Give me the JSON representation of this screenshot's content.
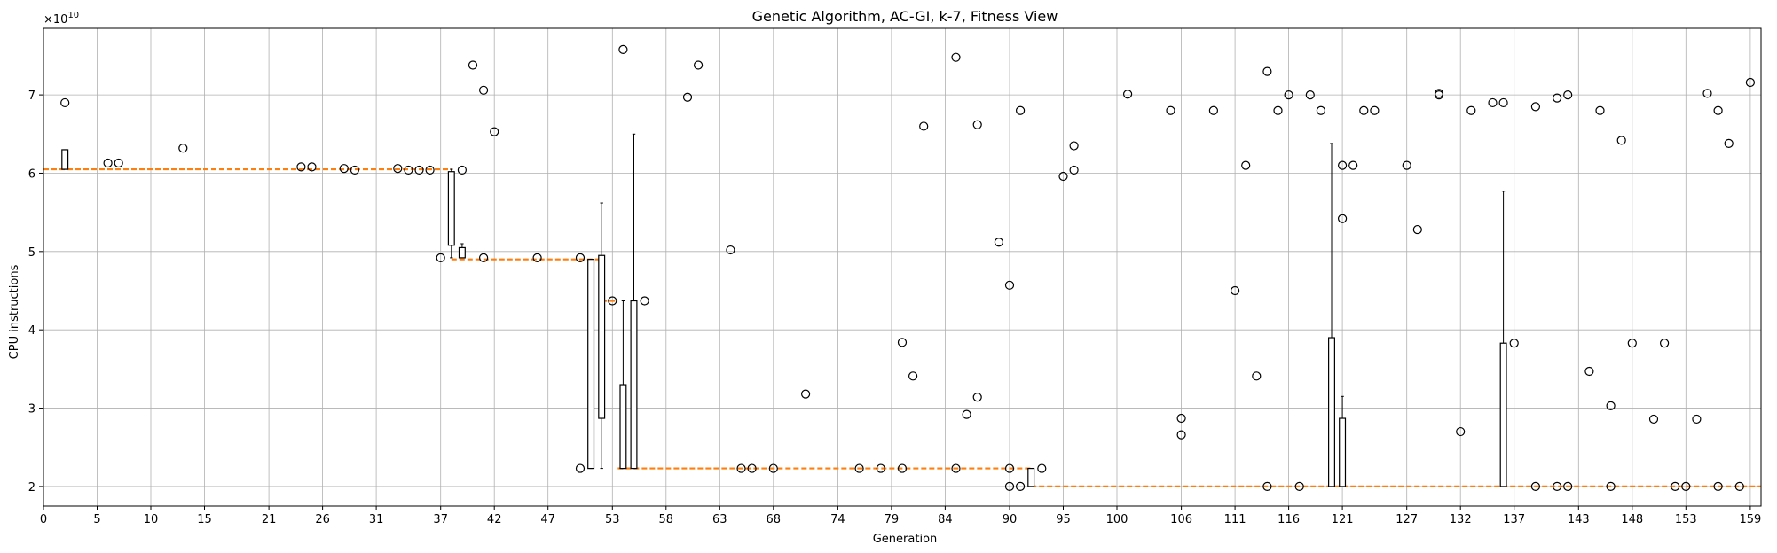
{
  "chart_data": {
    "type": "box",
    "title": "Genetic Algorithm, AC-GI, k-7, Fitness View",
    "xlabel": "Generation",
    "ylabel": "CPU instructions",
    "y_offset_label": "×10",
    "y_offset_exponent": "10",
    "xlim": [
      0,
      160
    ],
    "ylim": [
      1.75,
      7.85
    ],
    "x_ticks": [
      0,
      5,
      10,
      15,
      21,
      26,
      31,
      37,
      42,
      47,
      53,
      58,
      63,
      68,
      74,
      79,
      84,
      90,
      95,
      100,
      106,
      111,
      116,
      121,
      127,
      132,
      137,
      143,
      148,
      153,
      159
    ],
    "y_ticks": [
      2,
      3,
      4,
      5,
      6,
      7
    ],
    "grid": true,
    "median_segments": [
      {
        "x_from": 0,
        "x_to": 38,
        "y": 6.05
      },
      {
        "x_from": 38,
        "x_to": 52,
        "y": 4.9
      },
      {
        "x_from": 52,
        "x_to": 53.5,
        "y": 4.37
      },
      {
        "x_from": 53.5,
        "x_to": 92,
        "y": 2.23
      },
      {
        "x_from": 92,
        "x_to": 160,
        "y": 2.0
      }
    ],
    "boxes": [
      {
        "x": 2,
        "q1": 6.05,
        "q3": 6.3,
        "low": 6.05,
        "high": 6.3
      },
      {
        "x": 38,
        "q1": 5.08,
        "q3": 6.02,
        "low": 4.92,
        "high": 6.05
      },
      {
        "x": 39,
        "q1": 4.92,
        "q3": 5.05,
        "low": 4.92,
        "high": 5.1
      },
      {
        "x": 51,
        "q1": 2.23,
        "q3": 4.9,
        "low": 2.23,
        "high": 4.9
      },
      {
        "x": 52,
        "q1": 2.87,
        "q3": 4.95,
        "low": 2.23,
        "high": 5.62
      },
      {
        "x": 54,
        "q1": 2.23,
        "q3": 3.3,
        "low": 2.23,
        "high": 4.37
      },
      {
        "x": 55,
        "q1": 2.23,
        "q3": 4.37,
        "low": 2.23,
        "high": 6.5
      },
      {
        "x": 92,
        "q1": 2.0,
        "q3": 2.23,
        "low": 2.0,
        "high": 2.23
      },
      {
        "x": 120,
        "q1": 2.0,
        "q3": 3.9,
        "low": 2.0,
        "high": 6.38
      },
      {
        "x": 121,
        "q1": 2.0,
        "q3": 2.87,
        "low": 2.0,
        "high": 3.15
      },
      {
        "x": 136,
        "q1": 2.0,
        "q3": 3.83,
        "low": 2.0,
        "high": 5.77
      }
    ],
    "outliers": [
      [
        2,
        6.9
      ],
      [
        6,
        6.13
      ],
      [
        7,
        6.13
      ],
      [
        13,
        6.32
      ],
      [
        24,
        6.08
      ],
      [
        25,
        6.08
      ],
      [
        28,
        6.06
      ],
      [
        29,
        6.04
      ],
      [
        33,
        6.06
      ],
      [
        34,
        6.04
      ],
      [
        35,
        6.04
      ],
      [
        36,
        6.04
      ],
      [
        37,
        4.92
      ],
      [
        39,
        6.04
      ],
      [
        40,
        7.38
      ],
      [
        41,
        4.92
      ],
      [
        41,
        7.06
      ],
      [
        42,
        6.53
      ],
      [
        46,
        4.92
      ],
      [
        50,
        4.92
      ],
      [
        50,
        2.23
      ],
      [
        53,
        4.37
      ],
      [
        54,
        7.58
      ],
      [
        56,
        4.37
      ],
      [
        60,
        6.97
      ],
      [
        61,
        7.38
      ],
      [
        64,
        5.02
      ],
      [
        65,
        2.23
      ],
      [
        66,
        2.23
      ],
      [
        68,
        2.23
      ],
      [
        71,
        3.18
      ],
      [
        76,
        2.23
      ],
      [
        78,
        2.23
      ],
      [
        80,
        2.23
      ],
      [
        80,
        3.84
      ],
      [
        81,
        3.41
      ],
      [
        82,
        6.6
      ],
      [
        85,
        7.48
      ],
      [
        85,
        2.23
      ],
      [
        86,
        2.92
      ],
      [
        87,
        6.62
      ],
      [
        87,
        3.14
      ],
      [
        89,
        5.12
      ],
      [
        90,
        4.57
      ],
      [
        90,
        2.23
      ],
      [
        90,
        2.0
      ],
      [
        91,
        6.8
      ],
      [
        91,
        2.0
      ],
      [
        93,
        2.23
      ],
      [
        95,
        5.96
      ],
      [
        96,
        6.04
      ],
      [
        96,
        6.35
      ],
      [
        101,
        7.01
      ],
      [
        105,
        6.8
      ],
      [
        106,
        2.87
      ],
      [
        106,
        2.66
      ],
      [
        109,
        6.8
      ],
      [
        111,
        4.5
      ],
      [
        112,
        6.1
      ],
      [
        113,
        3.41
      ],
      [
        114,
        7.3
      ],
      [
        114,
        2.0
      ],
      [
        115,
        6.8
      ],
      [
        116,
        7.0
      ],
      [
        117,
        2.0
      ],
      [
        118,
        7.0
      ],
      [
        119,
        6.8
      ],
      [
        121,
        6.1
      ],
      [
        121,
        5.42
      ],
      [
        122,
        6.1
      ],
      [
        123,
        6.8
      ],
      [
        124,
        6.8
      ],
      [
        127,
        6.1
      ],
      [
        128,
        5.28
      ],
      [
        130,
        7.0
      ],
      [
        130,
        7.02
      ],
      [
        132,
        2.7
      ],
      [
        133,
        6.8
      ],
      [
        135,
        6.9
      ],
      [
        136,
        6.9
      ],
      [
        137,
        3.83
      ],
      [
        139,
        6.85
      ],
      [
        139,
        2.0
      ],
      [
        141,
        6.96
      ],
      [
        141,
        2.0
      ],
      [
        142,
        7.0
      ],
      [
        142,
        2.0
      ],
      [
        144,
        3.47
      ],
      [
        145,
        6.8
      ],
      [
        146,
        3.03
      ],
      [
        146,
        2.0
      ],
      [
        147,
        6.42
      ],
      [
        148,
        3.83
      ],
      [
        150,
        2.86
      ],
      [
        151,
        3.83
      ],
      [
        152,
        2.0
      ],
      [
        153,
        2.0
      ],
      [
        154,
        2.86
      ],
      [
        155,
        7.02
      ],
      [
        156,
        6.8
      ],
      [
        156,
        2.0
      ],
      [
        157,
        6.38
      ],
      [
        158,
        2.0
      ],
      [
        159,
        7.16
      ]
    ],
    "colors": {
      "median": "#ff7f0e",
      "box": "#000000",
      "grid": "#b0b0b0",
      "outlier_edge": "#000000"
    }
  }
}
